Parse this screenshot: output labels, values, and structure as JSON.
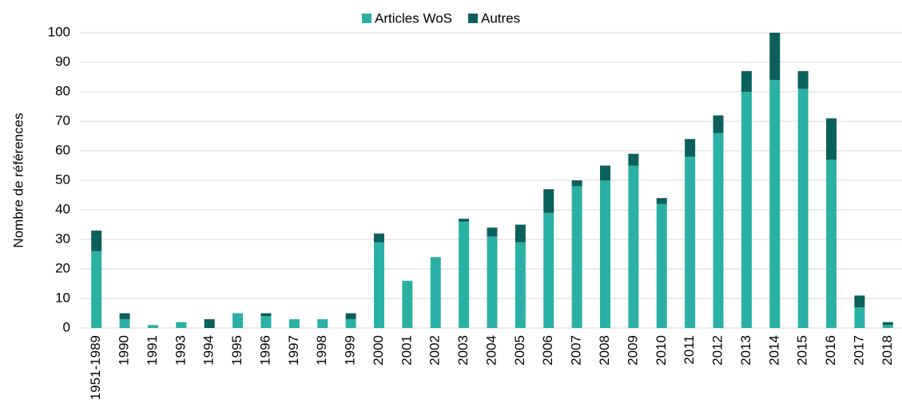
{
  "chart_data": {
    "type": "stacked_bar",
    "y_label": "Nombre de références",
    "categories": [
      "1951-1989",
      "1990",
      "1991",
      "1993",
      "1994",
      "1995",
      "1996",
      "1997",
      "1998",
      "1999",
      "2000",
      "2001",
      "2002",
      "2003",
      "2004",
      "2005",
      "2006",
      "2007",
      "2008",
      "2009",
      "2010",
      "2011",
      "2012",
      "2013",
      "2014",
      "2015",
      "2016",
      "2017",
      "2018"
    ],
    "series": [
      {
        "name": "Articles WoS",
        "color": "#2bb0a5",
        "values": [
          26,
          3,
          1,
          2,
          0,
          5,
          4,
          3,
          3,
          3,
          29,
          16,
          24,
          36,
          31,
          29,
          39,
          48,
          50,
          55,
          42,
          58,
          66,
          80,
          84,
          81,
          57,
          7,
          1
        ]
      },
      {
        "name": "Autres",
        "color": "#0b5f5c",
        "values": [
          7,
          2,
          0,
          0,
          3,
          0,
          1,
          0,
          0,
          2,
          3,
          0,
          0,
          1,
          3,
          6,
          8,
          2,
          5,
          4,
          2,
          6,
          6,
          7,
          16,
          6,
          14,
          4,
          1
        ]
      }
    ],
    "ylim": [
      0,
      100
    ],
    "yticks": [
      0,
      10,
      20,
      30,
      40,
      50,
      60,
      70,
      80,
      90,
      100
    ],
    "grid": true,
    "legend": "top"
  }
}
